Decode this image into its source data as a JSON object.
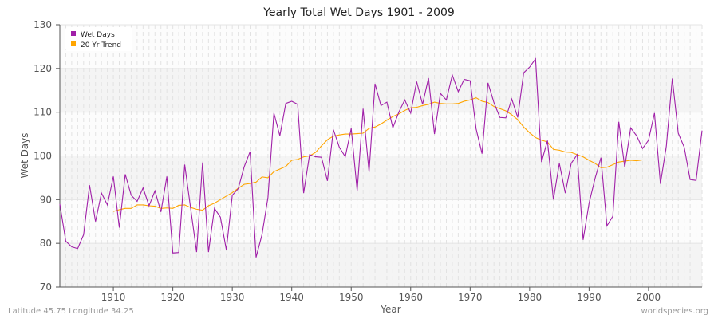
{
  "chart_data": {
    "type": "line",
    "title": "Yearly Total Wet Days 1901 - 2009",
    "xlabel": "Year",
    "ylabel": "Wet Days",
    "xlim": [
      1901,
      2009
    ],
    "ylim": [
      70,
      130
    ],
    "xticks": [
      1910,
      1920,
      1930,
      1940,
      1950,
      1960,
      1970,
      1980,
      1990,
      2000
    ],
    "yticks": [
      70,
      80,
      90,
      100,
      110,
      120,
      130
    ],
    "grid": true,
    "legend_position": "top-left",
    "series": [
      {
        "name": "Wet Days",
        "color": "#a020a8",
        "x_start": 1901,
        "values": [
          89,
          80.5,
          79.2,
          78.8,
          82,
          93.3,
          85,
          91.5,
          88.8,
          95.3,
          83.6,
          95.8,
          91,
          89.6,
          92.7,
          88.6,
          92,
          87.2,
          95.3,
          77.8,
          77.9,
          98,
          88,
          78,
          98.5,
          78,
          88,
          86,
          78.5,
          91,
          92.5,
          97.5,
          101,
          76.8,
          82,
          90.5,
          109.8,
          104.6,
          112,
          112.5,
          111.8,
          91.5,
          100.3,
          99.8,
          99.7,
          94.3,
          106,
          102,
          99.8,
          106.3,
          92,
          110.8,
          96.3,
          116.5,
          111.5,
          112.3,
          106.4,
          110,
          112.8,
          109.8,
          117,
          111.8,
          117.8,
          105,
          114.3,
          112.8,
          118.5,
          114.7,
          117.5,
          117.2,
          106.2,
          100.5,
          116.7,
          112.2,
          108.8,
          108.7,
          113,
          108.8,
          119,
          120.3,
          122.2,
          98.6,
          103.5,
          90,
          98.3,
          91.5,
          98.3,
          100.3,
          80.8,
          89.2,
          94.8,
          99.6,
          84,
          86.2,
          107.8,
          97.4,
          106.4,
          104.6,
          101.7,
          103.6,
          109.8,
          93.6,
          102.3,
          117.7,
          105.2,
          102,
          94.6,
          94.4,
          105.8
        ]
      },
      {
        "name": "20 Yr Trend",
        "color": "#ffa500",
        "x_start": 1910,
        "values": [
          87.3,
          87.7,
          88,
          88,
          88.8,
          88.8,
          88.6,
          88.5,
          88,
          88.1,
          88,
          88.7,
          88.8,
          88.2,
          87.8,
          87.6,
          88.6,
          89.2,
          90,
          90.8,
          91.6,
          92.6,
          93.5,
          93.7,
          94,
          95.2,
          95,
          96.4,
          97,
          97.6,
          99,
          99.2,
          99.8,
          100,
          100.8,
          102.3,
          103.7,
          104.5,
          104.8,
          105,
          105,
          105.1,
          105.2,
          106.3,
          106.6,
          107.3,
          108.2,
          109,
          109.6,
          110.4,
          111,
          111.1,
          111.5,
          111.8,
          112.3,
          112,
          111.9,
          111.9,
          112,
          112.5,
          112.8,
          113.3,
          112.5,
          112.2,
          111.3,
          110.8,
          110.3,
          109.4,
          108.3,
          106.6,
          105.3,
          104.2,
          103.6,
          103.2,
          101.5,
          101.3,
          100.9,
          100.8,
          100.3,
          99.8,
          99,
          98.3,
          97.3,
          97.4,
          98,
          98.6,
          98.8,
          99,
          98.9,
          99.1
        ]
      }
    ]
  },
  "footer": {
    "left": "Latitude 45.75 Longitude 34.25",
    "right": "worldspecies.org"
  }
}
